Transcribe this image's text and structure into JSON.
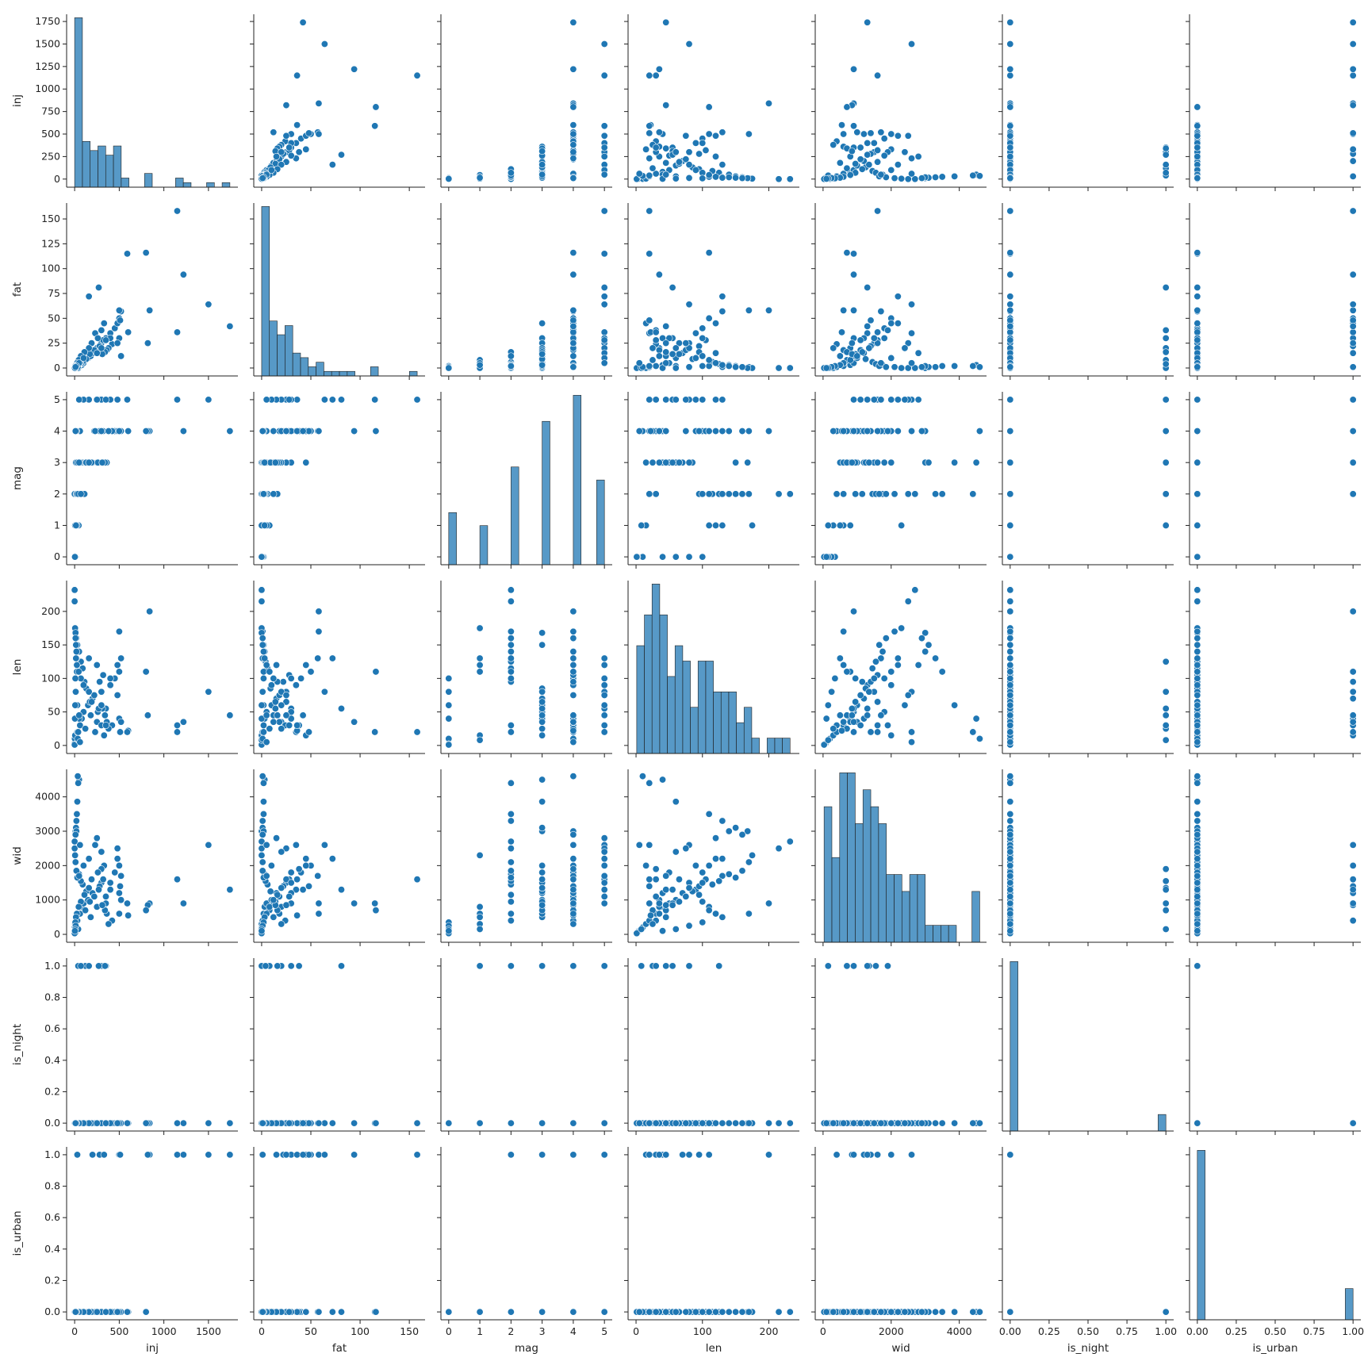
{
  "chart_data": {
    "type": "scatter",
    "kind": "pairplot",
    "variables": [
      "inj",
      "fat",
      "mag",
      "len",
      "wid",
      "is_night",
      "is_urban"
    ],
    "color": "#1f77b4",
    "ranges": {
      "inj": [
        -90,
        1830
      ],
      "fat": [
        -8,
        166
      ],
      "mag": [
        -0.25,
        5.25
      ],
      "len": [
        -12,
        246
      ],
      "wid": [
        -230,
        4800
      ],
      "is_night": [
        -0.05,
        1.05
      ],
      "is_urban": [
        -0.05,
        1.05
      ]
    },
    "ticks": {
      "inj": [
        0,
        500,
        1000,
        1500
      ],
      "fat": [
        0,
        50,
        100,
        150
      ],
      "mag": [
        0,
        1,
        2,
        3,
        4,
        5
      ],
      "len": [
        0,
        100,
        200
      ],
      "wid": [
        0,
        2000,
        4000
      ],
      "is_night": [
        0.0,
        0.25,
        0.5,
        0.75,
        1.0
      ],
      "is_urban": [
        0.0,
        0.25,
        0.5,
        0.75,
        1.0
      ]
    },
    "yticks": {
      "inj": [
        0,
        250,
        500,
        750,
        1000,
        1250,
        1500,
        1750
      ],
      "fat": [
        0,
        25,
        50,
        75,
        100,
        125,
        150
      ],
      "mag": [
        0,
        1,
        2,
        3,
        4,
        5
      ],
      "len": [
        0,
        50,
        100,
        150,
        200
      ],
      "wid": [
        0,
        1000,
        2000,
        3000,
        4000
      ],
      "is_night": [
        0.0,
        0.2,
        0.4,
        0.6,
        0.8,
        1.0
      ],
      "is_urban": [
        0.0,
        0.2,
        0.4,
        0.6,
        0.8,
        1.0
      ]
    },
    "records": [
      [
        0,
        0,
        0,
        3,
        80,
        0,
        0
      ],
      [
        2,
        0,
        0,
        10,
        200,
        0,
        0
      ],
      [
        5,
        0,
        1,
        15,
        300,
        0,
        0
      ],
      [
        10,
        0,
        0,
        2,
        50,
        0,
        0
      ],
      [
        0,
        0,
        0,
        1,
        30,
        0,
        0
      ],
      [
        30,
        1,
        2,
        20,
        400,
        0,
        1
      ],
      [
        40,
        0,
        1,
        8,
        150,
        1,
        0
      ],
      [
        60,
        2,
        2,
        30,
        600,
        0,
        0
      ],
      [
        80,
        3,
        3,
        40,
        800,
        0,
        0
      ],
      [
        100,
        5,
        3,
        50,
        900,
        0,
        0
      ],
      [
        120,
        8,
        3,
        25,
        700,
        1,
        0
      ],
      [
        150,
        10,
        3,
        60,
        1000,
        0,
        0
      ],
      [
        180,
        12,
        3,
        45,
        500,
        0,
        0
      ],
      [
        200,
        15,
        3,
        70,
        1200,
        0,
        1
      ],
      [
        250,
        20,
        3,
        35,
        800,
        0,
        0
      ],
      [
        300,
        25,
        3,
        80,
        1500,
        0,
        0
      ],
      [
        350,
        30,
        3,
        55,
        900,
        1,
        0
      ],
      [
        400,
        35,
        4,
        90,
        1300,
        0,
        0
      ],
      [
        450,
        40,
        4,
        100,
        1800,
        0,
        0
      ],
      [
        500,
        50,
        4,
        110,
        2000,
        0,
        1
      ],
      [
        520,
        57,
        4,
        130,
        1700,
        0,
        0
      ],
      [
        480,
        45,
        4,
        120,
        2200,
        0,
        0
      ],
      [
        320,
        28,
        4,
        105,
        1600,
        0,
        0
      ],
      [
        280,
        22,
        4,
        95,
        1400,
        0,
        1
      ],
      [
        220,
        18,
        4,
        75,
        1100,
        0,
        0
      ],
      [
        170,
        14,
        3,
        65,
        950,
        0,
        0
      ],
      [
        130,
        9,
        3,
        85,
        1250,
        0,
        0
      ],
      [
        90,
        6,
        2,
        115,
        1450,
        0,
        0
      ],
      [
        70,
        4,
        2,
        125,
        1550,
        1,
        0
      ],
      [
        50,
        3,
        2,
        140,
        1750,
        0,
        0
      ],
      [
        30,
        2,
        2,
        150,
        1650,
        0,
        0
      ],
      [
        20,
        1,
        2,
        160,
        1850,
        0,
        0
      ],
      [
        10,
        1,
        2,
        170,
        2100,
        0,
        0
      ],
      [
        5,
        0,
        1,
        175,
        2300,
        0,
        0
      ],
      [
        0,
        0,
        2,
        215,
        2500,
        0,
        0
      ],
      [
        0,
        0,
        2,
        232,
        2700,
        0,
        0
      ],
      [
        10,
        0,
        3,
        168,
        3000,
        0,
        0
      ],
      [
        15,
        1,
        3,
        150,
        3100,
        0,
        0
      ],
      [
        20,
        1,
        2,
        130,
        3300,
        0,
        0
      ],
      [
        25,
        2,
        2,
        110,
        3500,
        0,
        0
      ],
      [
        30,
        2,
        3,
        60,
        3860,
        0,
        0
      ],
      [
        50,
        3,
        3,
        40,
        4500,
        0,
        0
      ],
      [
        40,
        2,
        2,
        20,
        4400,
        0,
        0
      ],
      [
        35,
        1,
        4,
        10,
        4600,
        0,
        0
      ],
      [
        60,
        5,
        4,
        5,
        2600,
        0,
        0
      ],
      [
        230,
        35,
        4,
        20,
        2600,
        0,
        0
      ],
      [
        330,
        45,
        3,
        15,
        2000,
        0,
        1
      ],
      [
        300,
        38,
        4,
        30,
        1900,
        1,
        0
      ],
      [
        260,
        30,
        3,
        50,
        1800,
        0,
        0
      ],
      [
        190,
        25,
        3,
        65,
        1600,
        0,
        0
      ],
      [
        160,
        20,
        3,
        80,
        1350,
        1,
        0
      ],
      [
        110,
        16,
        2,
        95,
        1150,
        0,
        0
      ],
      [
        70,
        12,
        2,
        100,
        950,
        0,
        0
      ],
      [
        45,
        8,
        1,
        110,
        800,
        0,
        0
      ],
      [
        25,
        5,
        1,
        120,
        600,
        0,
        0
      ],
      [
        15,
        3,
        1,
        130,
        500,
        0,
        0
      ],
      [
        8,
        2,
        0,
        100,
        350,
        0,
        0
      ],
      [
        12,
        1,
        0,
        80,
        250,
        0,
        0
      ],
      [
        6,
        0,
        0,
        60,
        150,
        0,
        0
      ],
      [
        3,
        0,
        0,
        40,
        100,
        0,
        0
      ],
      [
        420,
        24,
        4,
        30,
        400,
        0,
        0
      ],
      [
        380,
        20,
        4,
        25,
        300,
        0,
        0
      ],
      [
        360,
        18,
        3,
        35,
        600,
        0,
        0
      ],
      [
        340,
        16,
        3,
        45,
        700,
        1,
        0
      ],
      [
        310,
        14,
        3,
        55,
        850,
        0,
        0
      ],
      [
        500,
        30,
        4,
        40,
        1200,
        0,
        1
      ],
      [
        510,
        48,
        4,
        20,
        1400,
        0,
        1
      ],
      [
        520,
        12,
        4,
        35,
        1000,
        0,
        0
      ],
      [
        600,
        36,
        4,
        22,
        550,
        0,
        0
      ],
      [
        840,
        58,
        4,
        200,
        900,
        0,
        1
      ],
      [
        820,
        25,
        4,
        45,
        850,
        0,
        1
      ],
      [
        1150,
        36,
        5,
        30,
        1600,
        0,
        1
      ],
      [
        1150,
        158,
        5,
        20,
        1600,
        0,
        1
      ],
      [
        1220,
        94,
        4,
        35,
        900,
        0,
        1
      ],
      [
        1500,
        64,
        5,
        80,
        2600,
        0,
        1
      ],
      [
        1740,
        42,
        4,
        45,
        1300,
        0,
        1
      ],
      [
        590,
        115,
        5,
        20,
        900,
        0,
        0
      ],
      [
        270,
        81,
        5,
        55,
        1300,
        1,
        0
      ],
      [
        160,
        72,
        5,
        130,
        2200,
        0,
        0
      ],
      [
        800,
        116,
        4,
        110,
        700,
        0,
        0
      ],
      [
        500,
        58,
        4,
        170,
        600,
        0,
        0
      ],
      [
        480,
        25,
        5,
        75,
        2500,
        0,
        0
      ],
      [
        300,
        20,
        5,
        60,
        2400,
        0,
        0
      ],
      [
        250,
        15,
        5,
        120,
        2800,
        0,
        0
      ],
      [
        100,
        10,
        5,
        90,
        2000,
        0,
        0
      ],
      [
        50,
        5,
        5,
        45,
        1700,
        0,
        0
      ],
      [
        20,
        2,
        4,
        140,
        3000,
        0,
        0
      ],
      [
        10,
        1,
        4,
        160,
        2900,
        0,
        0
      ],
      [
        400,
        30,
        5,
        100,
        1500,
        0,
        0
      ],
      [
        350,
        28,
        5,
        30,
        1100,
        0,
        0
      ]
    ]
  }
}
